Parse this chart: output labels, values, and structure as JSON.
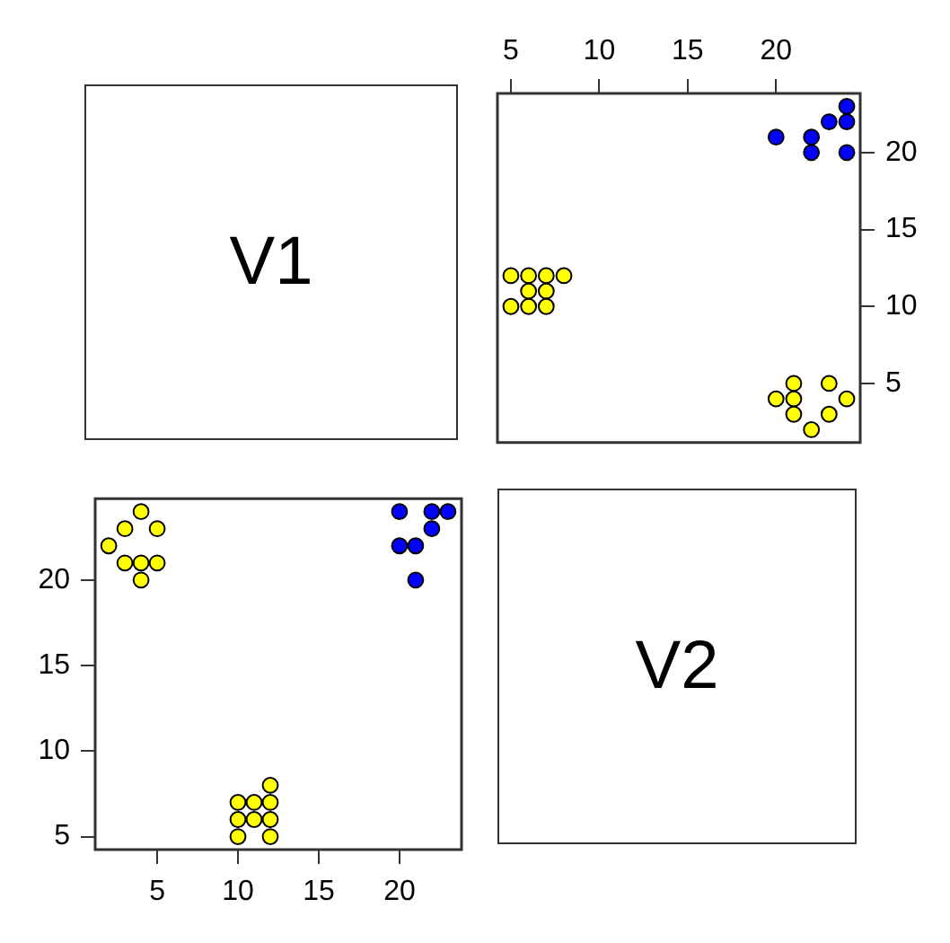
{
  "chart_data": [
    {
      "type": "other",
      "title": "V1"
    },
    {
      "type": "scatter",
      "xlim": [
        4.24,
        24.76
      ],
      "ylim": [
        1.16,
        23.84
      ],
      "xticks": [
        5,
        10,
        15,
        20
      ],
      "yticks": [
        5,
        10,
        15,
        20
      ],
      "grid": false,
      "legend": false,
      "marker": "circle",
      "series": [
        {
          "color": "#ffff00",
          "x": [
            5,
            6,
            7,
            8,
            6,
            7,
            5,
            6,
            7,
            21,
            23,
            20,
            21,
            24,
            21,
            23,
            22
          ],
          "values": [
            12,
            12,
            12,
            12,
            11,
            11,
            10,
            10,
            10,
            5,
            5,
            4,
            4,
            4,
            3,
            3,
            2
          ]
        },
        {
          "color": "#0000ff",
          "x": [
            20,
            22,
            22,
            23,
            24,
            24,
            24
          ],
          "values": [
            21,
            21,
            20,
            22,
            22,
            23,
            20
          ]
        }
      ]
    },
    {
      "type": "scatter",
      "xlim": [
        1.16,
        23.84
      ],
      "ylim": [
        4.24,
        24.76
      ],
      "xticks": [
        5,
        10,
        15,
        20
      ],
      "yticks": [
        5,
        10,
        15,
        20
      ],
      "grid": false,
      "legend": false,
      "marker": "circle",
      "series": [
        {
          "color": "#ffff00",
          "x": [
            12,
            12,
            12,
            12,
            11,
            11,
            10,
            10,
            10,
            5,
            5,
            4,
            4,
            4,
            3,
            3,
            2
          ],
          "values": [
            5,
            6,
            7,
            8,
            6,
            7,
            5,
            6,
            7,
            21,
            23,
            20,
            21,
            24,
            21,
            23,
            22
          ]
        },
        {
          "color": "#0000ff",
          "x": [
            21,
            21,
            20,
            22,
            22,
            23,
            20
          ],
          "values": [
            20,
            22,
            22,
            23,
            24,
            24,
            24
          ]
        }
      ]
    },
    {
      "type": "other",
      "title": "V2"
    }
  ]
}
